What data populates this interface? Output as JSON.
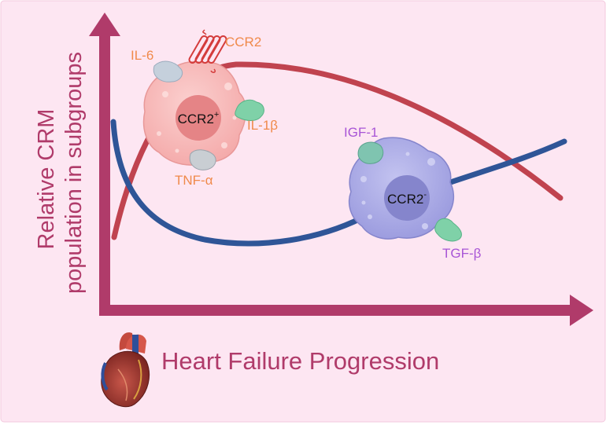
{
  "axes": {
    "y_label_line1": "Relative CRM",
    "y_label_line2": "population in subgroups",
    "x_label": "Heart Failure Progression"
  },
  "cells": {
    "ccr2_pos": {
      "name": "CCR2",
      "superscript": "+",
      "cytokines": [
        "IL-6",
        "IL-1β",
        "TNF-α"
      ],
      "receptor": "CCR2"
    },
    "ccr2_neg": {
      "name": "CCR2",
      "superscript": "-",
      "cytokines": [
        "IGF-1",
        "TGF-β"
      ]
    }
  },
  "colors": {
    "background": "#fde6f2",
    "axis": "#b03b6a",
    "curve_red": "#c0434f",
    "curve_blue": "#2f5597",
    "cytokine_orange": "#f08a4b",
    "cytokine_purple": "#a855d6",
    "ccr2_pos_cell": "#f6b2b2",
    "ccr2_neg_cell": "#a7a7e3"
  },
  "icons": {
    "heart": "heart-icon",
    "receptor": "ccr2-receptor-icon"
  }
}
